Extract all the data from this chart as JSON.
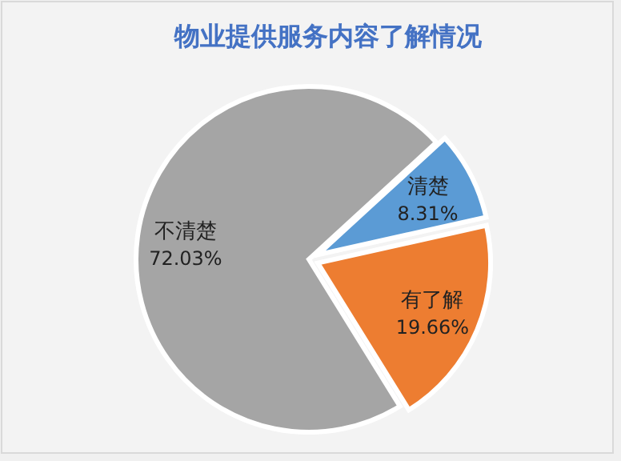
{
  "chart_data": {
    "type": "pie",
    "title": "物业提供服务内容了解情况",
    "categories": [
      "清楚",
      "有了解",
      "不清楚"
    ],
    "values": [
      8.31,
      19.66,
      72.03
    ],
    "value_labels": [
      "8.31%",
      "19.66%",
      "72.03%"
    ],
    "colors": [
      "#5b9bd5",
      "#ed7d31",
      "#a5a5a5"
    ]
  }
}
